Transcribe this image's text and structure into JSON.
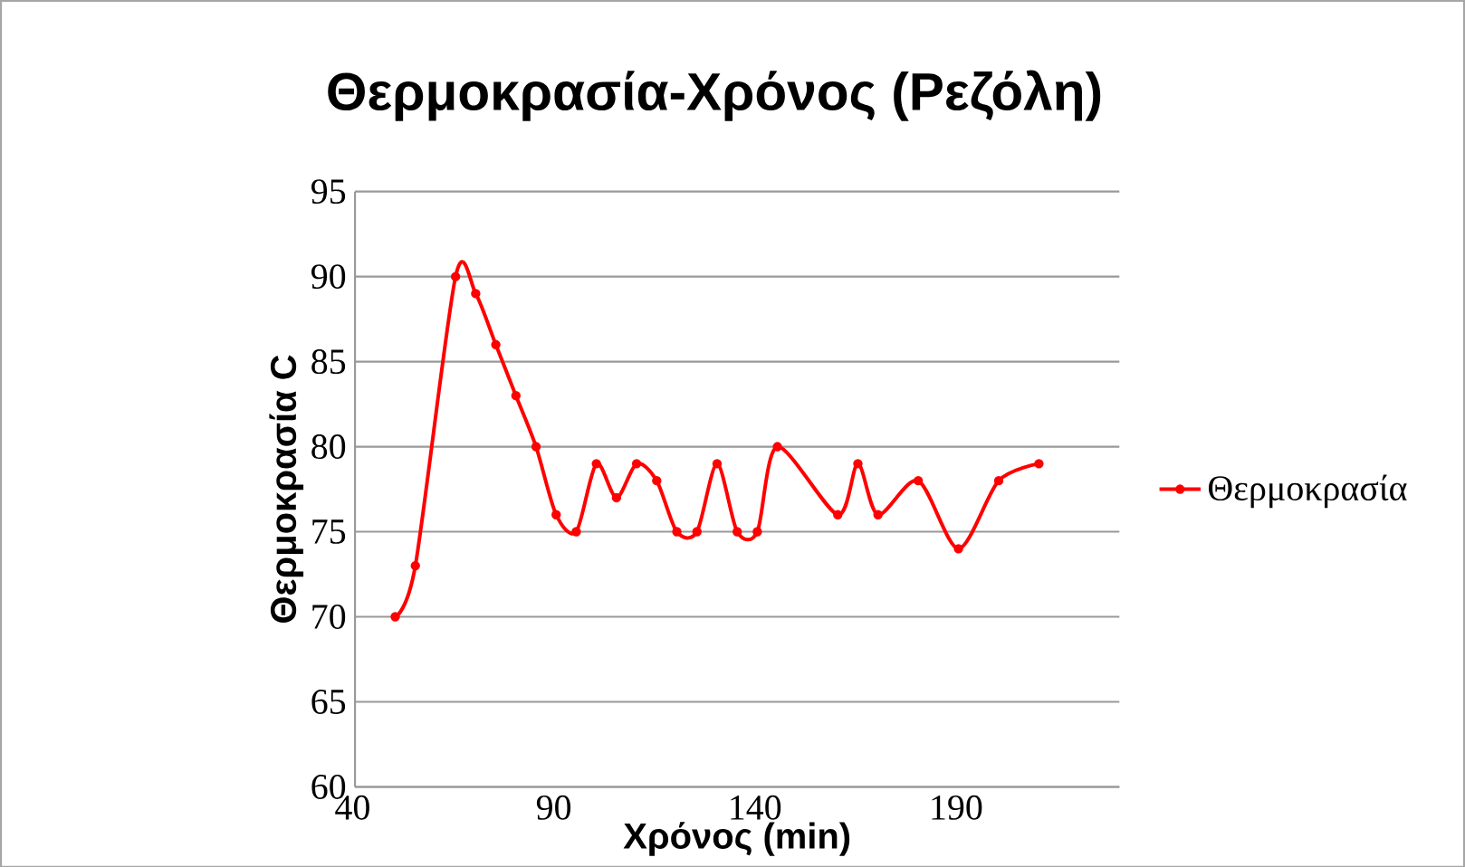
{
  "chart_data": {
    "type": "line",
    "title": "Θερμοκρασία-Χρόνος (Ρεζόλη)",
    "xlabel": "Χρόνος (min)",
    "ylabel": "Θερμοκρασία C",
    "x": [
      50,
      55,
      65,
      70,
      75,
      80,
      85,
      90,
      95,
      100,
      105,
      110,
      115,
      120,
      125,
      130,
      135,
      140,
      145,
      160,
      165,
      170,
      180,
      190,
      200,
      210
    ],
    "series": [
      {
        "name": "Θερμοκρασία",
        "color": "#ff0000",
        "values": [
          70,
          73,
          90,
          89,
          86,
          83,
          80,
          76,
          75,
          79,
          77,
          79,
          78,
          75,
          75,
          79,
          75,
          75,
          80,
          76,
          79,
          76,
          78,
          74,
          78,
          79
        ]
      }
    ],
    "xlim": [
      40,
      230
    ],
    "xticks": [
      40,
      90,
      140,
      190
    ],
    "ylim": [
      60,
      95
    ],
    "yticks": [
      60,
      65,
      70,
      75,
      80,
      85,
      90,
      95
    ],
    "grid": "y",
    "legend": "right",
    "marker": "circle",
    "line_style": "solid"
  }
}
